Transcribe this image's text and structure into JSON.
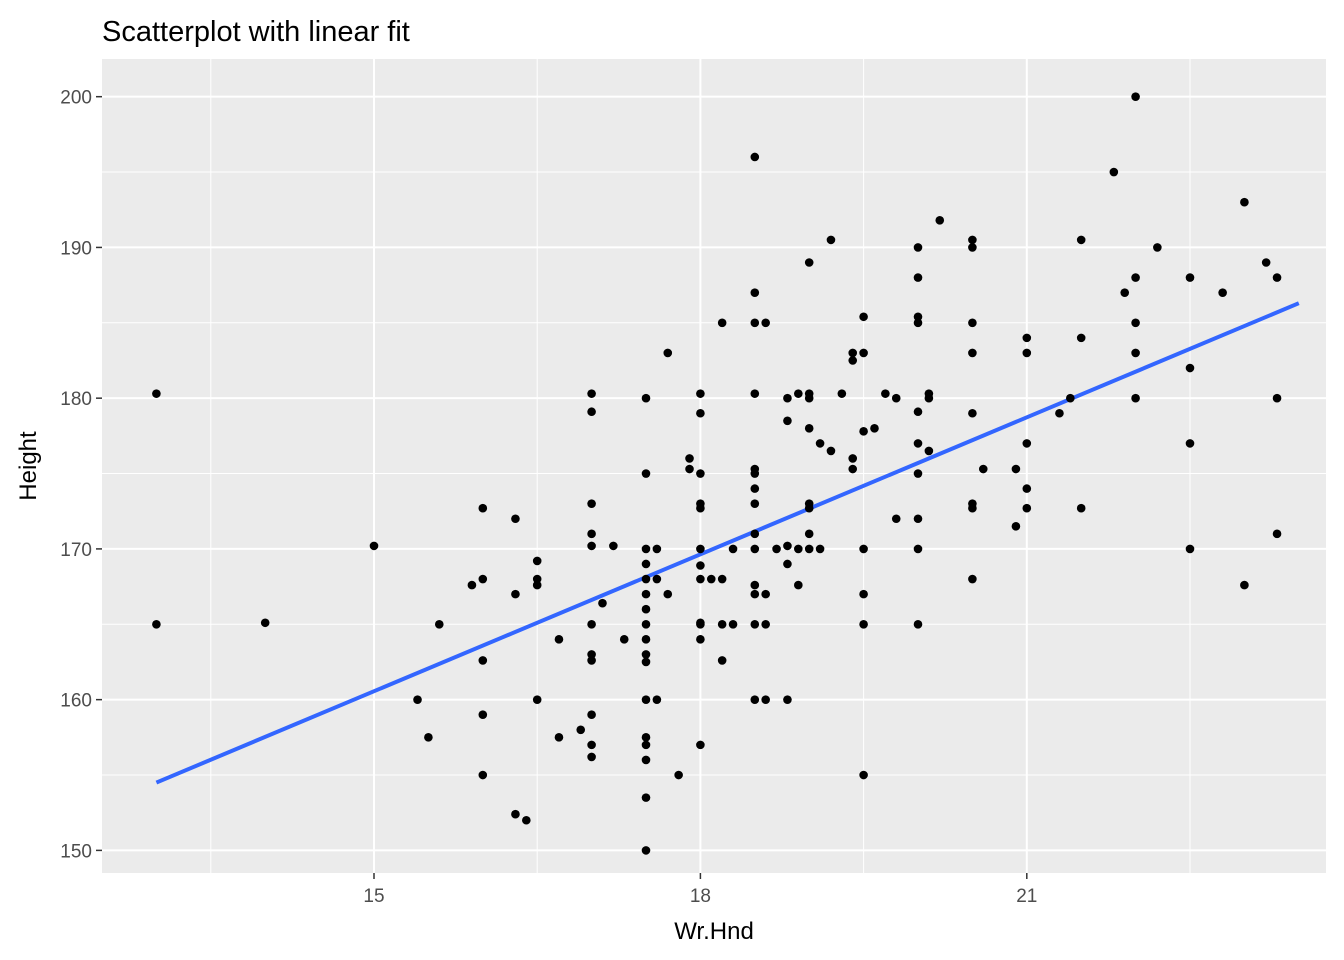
{
  "chart_data": {
    "type": "scatter",
    "title": "Scatterplot with linear fit",
    "xlabel": "Wr.Hnd",
    "ylabel": "Height",
    "xlim": [
      12.5,
      23.75
    ],
    "ylim": [
      148.5,
      202.5
    ],
    "xticks": [
      15,
      18,
      21
    ],
    "yticks": [
      150,
      160,
      170,
      180,
      190,
      200
    ],
    "grid": true,
    "background_color": "#ebebeb",
    "grid_color": "#ffffff",
    "point_color": "#000000",
    "fit_color": "#3366ff",
    "fit_line": {
      "x": [
        13.0,
        23.5
      ],
      "y": [
        154.5,
        186.3
      ]
    },
    "points": [
      [
        13.0,
        180.3
      ],
      [
        13.0,
        165.0
      ],
      [
        14.0,
        165.1
      ],
      [
        15.0,
        170.2
      ],
      [
        15.4,
        160.0
      ],
      [
        15.5,
        157.5
      ],
      [
        15.6,
        165.0
      ],
      [
        15.9,
        167.6
      ],
      [
        16.0,
        168.0
      ],
      [
        16.0,
        172.7
      ],
      [
        16.0,
        162.6
      ],
      [
        16.0,
        159.0
      ],
      [
        16.0,
        155.0
      ],
      [
        16.3,
        167.0
      ],
      [
        16.3,
        172.0
      ],
      [
        16.3,
        152.4
      ],
      [
        16.4,
        152.0
      ],
      [
        16.5,
        169.2
      ],
      [
        16.5,
        168.0
      ],
      [
        16.5,
        167.6
      ],
      [
        16.5,
        160.0
      ],
      [
        16.7,
        164.0
      ],
      [
        16.7,
        157.5
      ],
      [
        16.9,
        158.0
      ],
      [
        17.0,
        157.0
      ],
      [
        17.0,
        180.3
      ],
      [
        17.0,
        179.1
      ],
      [
        17.0,
        173.0
      ],
      [
        17.0,
        171.0
      ],
      [
        17.0,
        170.2
      ],
      [
        17.0,
        165.0
      ],
      [
        17.0,
        163.0
      ],
      [
        17.0,
        162.6
      ],
      [
        17.0,
        159.0
      ],
      [
        17.0,
        156.2
      ],
      [
        17.1,
        166.4
      ],
      [
        17.2,
        170.2
      ],
      [
        17.3,
        164.0
      ],
      [
        17.5,
        180.0
      ],
      [
        17.5,
        175.0
      ],
      [
        17.5,
        170.0
      ],
      [
        17.5,
        169.0
      ],
      [
        17.5,
        168.0
      ],
      [
        17.5,
        167.0
      ],
      [
        17.5,
        166.0
      ],
      [
        17.5,
        165.0
      ],
      [
        17.5,
        164.0
      ],
      [
        17.5,
        163.0
      ],
      [
        17.5,
        162.5
      ],
      [
        17.5,
        160.0
      ],
      [
        17.5,
        157.5
      ],
      [
        17.5,
        157.0
      ],
      [
        17.5,
        156.0
      ],
      [
        17.5,
        153.5
      ],
      [
        17.5,
        150.0
      ],
      [
        17.6,
        170.0
      ],
      [
        17.6,
        168.0
      ],
      [
        17.6,
        160.0
      ],
      [
        17.7,
        183.0
      ],
      [
        17.7,
        167.0
      ],
      [
        17.8,
        155.0
      ],
      [
        17.9,
        176.0
      ],
      [
        17.9,
        175.3
      ],
      [
        18.0,
        180.3
      ],
      [
        18.0,
        179.0
      ],
      [
        18.0,
        175.0
      ],
      [
        18.0,
        173.0
      ],
      [
        18.0,
        172.7
      ],
      [
        18.0,
        170.0
      ],
      [
        18.0,
        168.9
      ],
      [
        18.0,
        168.0
      ],
      [
        18.0,
        165.1
      ],
      [
        18.0,
        165.0
      ],
      [
        18.0,
        164.0
      ],
      [
        18.0,
        157.0
      ],
      [
        18.1,
        168.0
      ],
      [
        18.2,
        185.0
      ],
      [
        18.2,
        168.0
      ],
      [
        18.2,
        165.0
      ],
      [
        18.2,
        162.6
      ],
      [
        18.3,
        170.0
      ],
      [
        18.3,
        165.0
      ],
      [
        18.5,
        196.0
      ],
      [
        18.5,
        187.0
      ],
      [
        18.5,
        185.0
      ],
      [
        18.5,
        180.3
      ],
      [
        18.5,
        175.3
      ],
      [
        18.5,
        175.0
      ],
      [
        18.5,
        174.0
      ],
      [
        18.5,
        173.0
      ],
      [
        18.5,
        171.0
      ],
      [
        18.5,
        170.0
      ],
      [
        18.5,
        167.6
      ],
      [
        18.5,
        167.0
      ],
      [
        18.5,
        165.0
      ],
      [
        18.5,
        160.0
      ],
      [
        18.6,
        185.0
      ],
      [
        18.6,
        167.0
      ],
      [
        18.6,
        165.0
      ],
      [
        18.6,
        160.0
      ],
      [
        18.7,
        170.0
      ],
      [
        18.8,
        180.0
      ],
      [
        18.8,
        178.5
      ],
      [
        18.8,
        170.2
      ],
      [
        18.8,
        169.0
      ],
      [
        18.8,
        160.0
      ],
      [
        18.9,
        180.3
      ],
      [
        18.9,
        170.0
      ],
      [
        18.9,
        167.6
      ],
      [
        19.0,
        189.0
      ],
      [
        19.0,
        180.3
      ],
      [
        19.0,
        180.0
      ],
      [
        19.0,
        178.0
      ],
      [
        19.0,
        173.0
      ],
      [
        19.0,
        172.7
      ],
      [
        19.0,
        171.0
      ],
      [
        19.0,
        170.0
      ],
      [
        19.1,
        177.0
      ],
      [
        19.1,
        170.0
      ],
      [
        19.2,
        190.5
      ],
      [
        19.2,
        176.5
      ],
      [
        19.3,
        180.3
      ],
      [
        19.4,
        183.0
      ],
      [
        19.4,
        182.5
      ],
      [
        19.4,
        176.0
      ],
      [
        19.4,
        175.3
      ],
      [
        19.5,
        185.4
      ],
      [
        19.5,
        183.0
      ],
      [
        19.5,
        177.8
      ],
      [
        19.5,
        170.0
      ],
      [
        19.5,
        167.0
      ],
      [
        19.5,
        165.0
      ],
      [
        19.5,
        155.0
      ],
      [
        19.6,
        178.0
      ],
      [
        19.7,
        180.3
      ],
      [
        19.8,
        180.0
      ],
      [
        19.8,
        172.0
      ],
      [
        20.0,
        190.0
      ],
      [
        20.0,
        188.0
      ],
      [
        20.0,
        185.4
      ],
      [
        20.0,
        185.0
      ],
      [
        20.0,
        179.1
      ],
      [
        20.0,
        177.0
      ],
      [
        20.0,
        175.0
      ],
      [
        20.0,
        172.0
      ],
      [
        20.0,
        170.0
      ],
      [
        20.0,
        165.0
      ],
      [
        20.1,
        180.3
      ],
      [
        20.1,
        180.0
      ],
      [
        20.1,
        176.5
      ],
      [
        20.2,
        191.8
      ],
      [
        20.5,
        190.5
      ],
      [
        20.5,
        190.0
      ],
      [
        20.5,
        185.0
      ],
      [
        20.5,
        183.0
      ],
      [
        20.5,
        179.0
      ],
      [
        20.5,
        173.0
      ],
      [
        20.5,
        172.7
      ],
      [
        20.5,
        168.0
      ],
      [
        20.6,
        175.3
      ],
      [
        20.9,
        175.3
      ],
      [
        20.9,
        171.5
      ],
      [
        21.0,
        184.0
      ],
      [
        21.0,
        183.0
      ],
      [
        21.0,
        177.0
      ],
      [
        21.0,
        174.0
      ],
      [
        21.0,
        172.7
      ],
      [
        21.3,
        179.0
      ],
      [
        21.4,
        180.0
      ],
      [
        21.5,
        190.5
      ],
      [
        21.5,
        184.0
      ],
      [
        21.5,
        172.7
      ],
      [
        21.8,
        195.0
      ],
      [
        21.9,
        187.0
      ],
      [
        22.0,
        200.0
      ],
      [
        22.0,
        188.0
      ],
      [
        22.0,
        185.0
      ],
      [
        22.0,
        183.0
      ],
      [
        22.0,
        180.0
      ],
      [
        22.2,
        190.0
      ],
      [
        22.5,
        188.0
      ],
      [
        22.5,
        182.0
      ],
      [
        22.5,
        177.0
      ],
      [
        22.5,
        170.0
      ],
      [
        22.8,
        187.0
      ],
      [
        23.0,
        193.0
      ],
      [
        23.0,
        167.6
      ],
      [
        23.2,
        189.0
      ],
      [
        23.3,
        188.0
      ],
      [
        23.3,
        180.0
      ],
      [
        23.3,
        171.0
      ]
    ]
  }
}
